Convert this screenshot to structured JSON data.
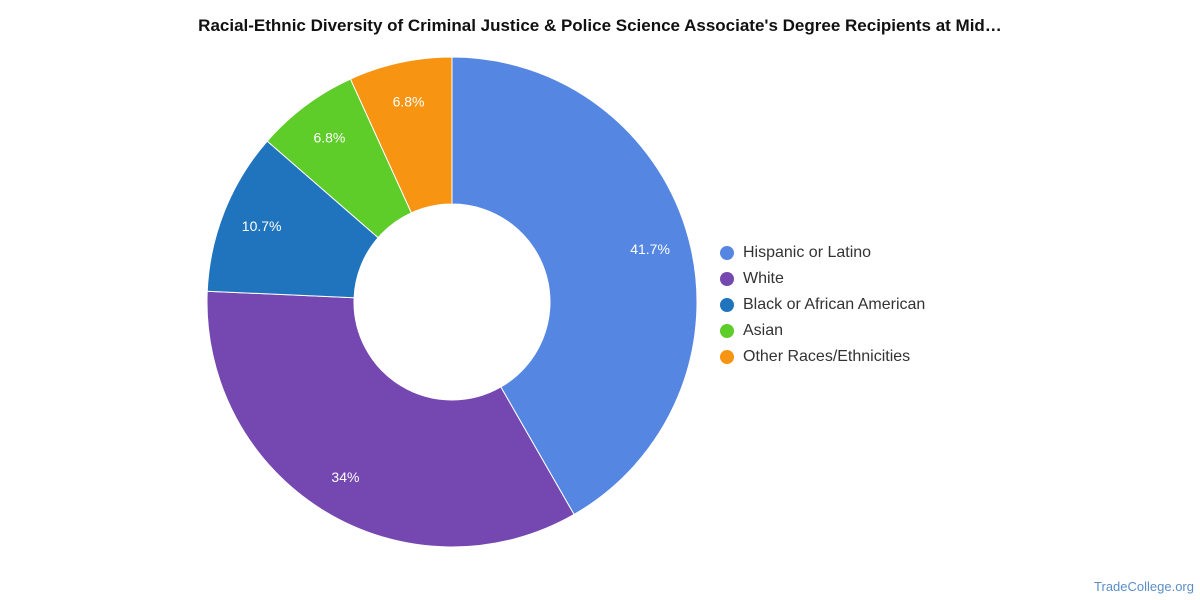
{
  "chart_data": {
    "type": "pie",
    "title": "Racial-Ethnic Diversity of Criminal Justice & Police Science Associate's Degree Recipients at Mid…",
    "categories": [
      "Hispanic or Latino",
      "White",
      "Black or African American",
      "Asian",
      "Other Races/Ethnicities"
    ],
    "values": [
      41.7,
      34,
      10.7,
      6.8,
      6.8
    ],
    "labels": [
      "41.7%",
      "34%",
      "10.7%",
      "6.8%",
      "6.8%"
    ],
    "colors": [
      "#5486e2",
      "#7547b0",
      "#1f74bd",
      "#5ecc29",
      "#f79411"
    ],
    "donut": true,
    "legend_position": "right"
  },
  "footer": {
    "source": "TradeCollege.org"
  }
}
